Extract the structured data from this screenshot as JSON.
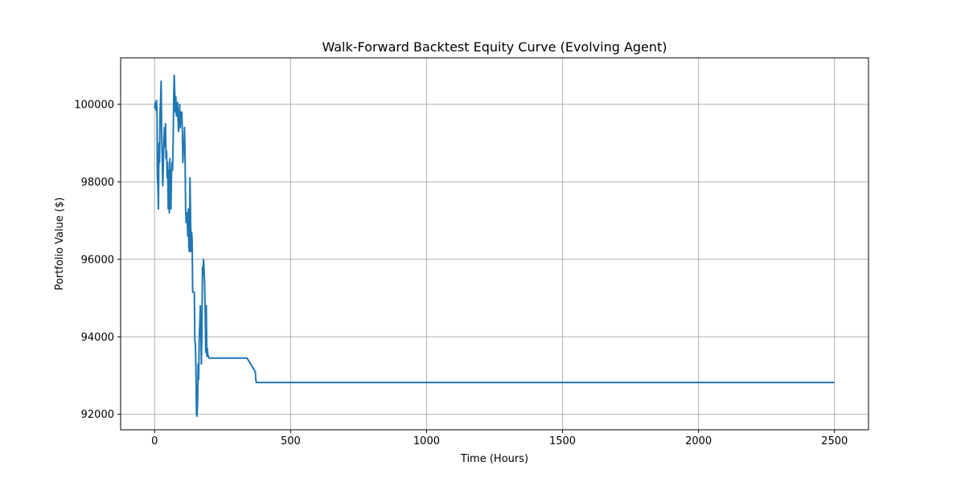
{
  "chart_data": {
    "type": "line",
    "title": "Walk-Forward Backtest Equity Curve (Evolving Agent)",
    "xlabel": "Time (Hours)",
    "ylabel": "Portfolio Value ($)",
    "xlim": [
      -125,
      2625
    ],
    "ylim": [
      91600,
      101200
    ],
    "xticks": [
      0,
      500,
      1000,
      1500,
      2000,
      2500
    ],
    "yticks": [
      92000,
      94000,
      96000,
      98000,
      100000
    ],
    "xtick_labels": [
      "0",
      "500",
      "1000",
      "1500",
      "2000",
      "2500"
    ],
    "ytick_labels": [
      "92000",
      "94000",
      "96000",
      "98000",
      "100000"
    ],
    "grid": true,
    "line_color": "#1f77b4",
    "series": [
      {
        "x": [
          0,
          3,
          5,
          7,
          9,
          10,
          12,
          14,
          16,
          18,
          20,
          22,
          24,
          26,
          28,
          30,
          32,
          34,
          36,
          38,
          40,
          42,
          44,
          46,
          48,
          50,
          52,
          54,
          56,
          58,
          60,
          62,
          64,
          66,
          68,
          70,
          72,
          74,
          76,
          78,
          80,
          82,
          84,
          86,
          88,
          90,
          92,
          94,
          96,
          98,
          100,
          102,
          104,
          106,
          108,
          110,
          112,
          114,
          116,
          118,
          120,
          122,
          124,
          126,
          128,
          130,
          132,
          134,
          136,
          138,
          140,
          142,
          144,
          146,
          148,
          150,
          152,
          154,
          156,
          158,
          160,
          162,
          164,
          166,
          168,
          170,
          172,
          174,
          176,
          178,
          180,
          182,
          184,
          186,
          188,
          190,
          192,
          194,
          196,
          198,
          200,
          202,
          204,
          206,
          208,
          210,
          214,
          216,
          220,
          224,
          228,
          230,
          232,
          234,
          236,
          238,
          240,
          242,
          244,
          246,
          248,
          250,
          252,
          254,
          256,
          258,
          260,
          262,
          264,
          266,
          268,
          270,
          272,
          274,
          276,
          278,
          280,
          282,
          284,
          286,
          288,
          290,
          292,
          294,
          296,
          298,
          300,
          302,
          304,
          306,
          340,
          370,
          372,
          374,
          376,
          380,
          400,
          2500
        ],
        "y": [
          99900,
          100050,
          99850,
          100100,
          99700,
          98200,
          97900,
          97300,
          99000,
          98500,
          99800,
          100100,
          100600,
          99200,
          98600,
          97900,
          98400,
          99100,
          99400,
          98900,
          99500,
          98600,
          98800,
          98100,
          98500,
          97300,
          98300,
          97200,
          98600,
          97400,
          97300,
          98200,
          98500,
          98300,
          99000,
          100100,
          100750,
          100300,
          99800,
          100200,
          99700,
          99800,
          100050,
          99600,
          99300,
          99500,
          100000,
          99400,
          99800,
          99500,
          99800,
          99300,
          98500,
          98900,
          98800,
          99400,
          98600,
          97300,
          96950,
          97200,
          97000,
          96600,
          97300,
          96300,
          96200,
          98100,
          97200,
          96200,
          96700,
          96500,
          95150,
          95150,
          95150,
          95150,
          93900,
          93800,
          93100,
          92000,
          91950,
          92300,
          93300,
          92900,
          94000,
          94300,
          94800,
          94200,
          93300,
          94200,
          95800,
          95600,
          96000,
          95700,
          95300,
          94600,
          93600,
          94800,
          93500,
          93700,
          93500,
          93500,
          93450,
          93450,
          93450,
          93450,
          93450,
          93450,
          93450,
          93450,
          93450,
          93450,
          93450,
          93450,
          93450,
          93450,
          93450,
          93450,
          93450,
          93450,
          93450,
          93450,
          93450,
          93450,
          93450,
          93450,
          93450,
          93450,
          93450,
          93450,
          93450,
          93450,
          93450,
          93450,
          93450,
          93450,
          93450,
          93450,
          93450,
          93450,
          93450,
          93450,
          93450,
          93450,
          93450,
          93450,
          93450,
          93450,
          93450,
          93450,
          93450,
          93450,
          93450,
          93100,
          92900,
          92820,
          92820,
          92820,
          92820,
          92820
        ]
      }
    ]
  }
}
